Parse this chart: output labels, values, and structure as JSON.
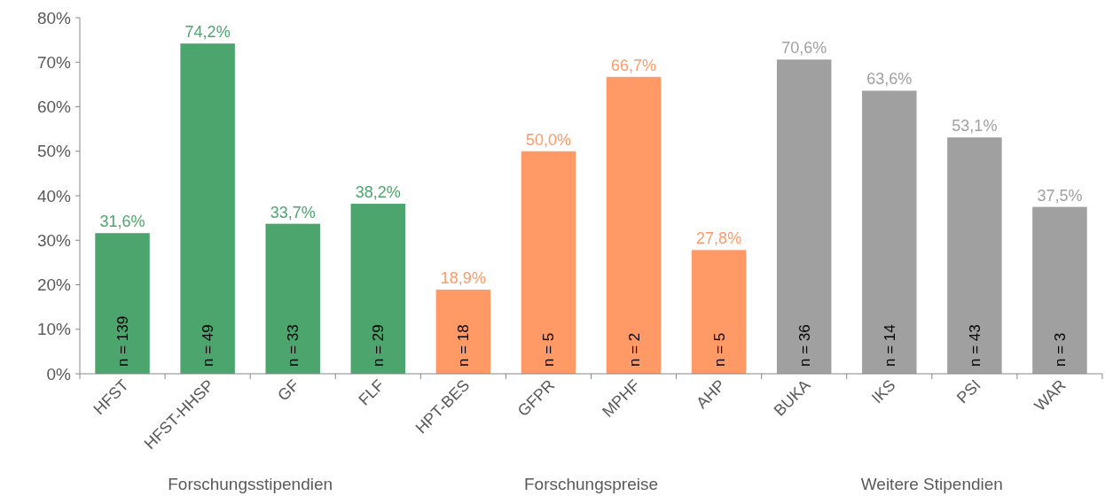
{
  "chart_data": {
    "type": "bar",
    "categories": [
      "HFST",
      "HFST-HHSP",
      "GF",
      "FLF",
      "HPT-BES",
      "GFPR",
      "MPHF",
      "AHP",
      "BUKA",
      "IKS",
      "PSI",
      "WAR"
    ],
    "values": [
      31.6,
      74.2,
      33.7,
      38.2,
      18.9,
      50.0,
      66.7,
      27.8,
      70.6,
      63.6,
      53.1,
      37.5
    ],
    "colors": [
      "#4ca56d",
      "#4ca56d",
      "#4ca56d",
      "#4ca56d",
      "#ff9966",
      "#ff9966",
      "#ff9966",
      "#ff9966",
      "#a0a0a0",
      "#a0a0a0",
      "#a0a0a0",
      "#a0a0a0"
    ],
    "value_labels": [
      "31,6%",
      "74,2%",
      "33,7%",
      "38,2%",
      "18,9%",
      "50,0%",
      "66,7%",
      "27,8%",
      "70,6%",
      "63,6%",
      "53,1%",
      "37,5%"
    ],
    "ylim": [
      0,
      80
    ],
    "yticks": [
      {
        "value": 0,
        "label": "0%"
      },
      {
        "value": 10,
        "label": "10%"
      },
      {
        "value": 20,
        "label": "20%"
      },
      {
        "value": 30,
        "label": "30%"
      },
      {
        "value": 40,
        "label": "40%"
      },
      {
        "value": 50,
        "label": "50%"
      },
      {
        "value": 60,
        "label": "60%"
      },
      {
        "value": 70,
        "label": "70%"
      },
      {
        "value": 80,
        "label": "80%"
      }
    ],
    "grid": false,
    "annotations": [
      "n = 139",
      "n = 49",
      "n = 33",
      "n = 29",
      "n = 18",
      "n = 5",
      "n = 2",
      "n = 5",
      "n = 36",
      "n = 14",
      "n = 43",
      "n = 3",
      "Forschungsstipendien",
      "Forschungspreise",
      "Weitere Stipendien"
    ]
  }
}
